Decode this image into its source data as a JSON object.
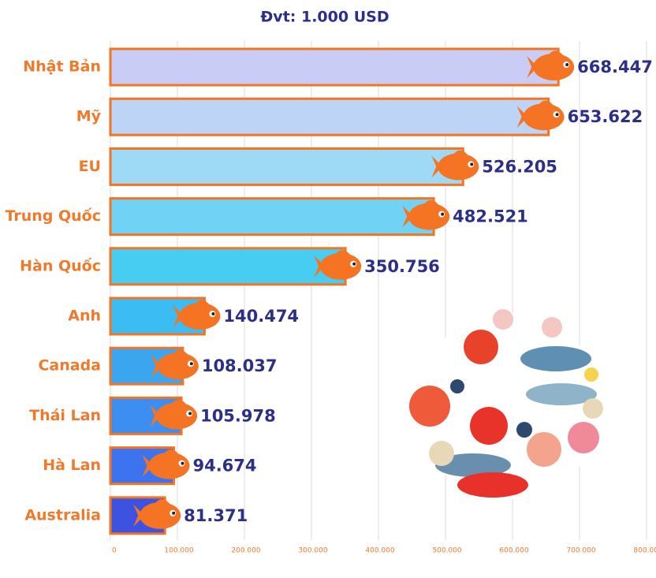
{
  "chart_data": {
    "type": "bar",
    "orientation": "horizontal",
    "title": "Đvt: 1.000 USD",
    "categories": [
      "Nhật Bản",
      "Mỹ",
      "EU",
      "Trung Quốc",
      "Hàn Quốc",
      "Anh",
      "Canada",
      "Thái Lan",
      "Hà Lan",
      "Australia"
    ],
    "values": [
      668447,
      653622,
      526205,
      482521,
      350756,
      140474,
      108037,
      105978,
      94674,
      81371
    ],
    "value_labels": [
      "668.447",
      "653.622",
      "526.205",
      "482.521",
      "350.756",
      "140.474",
      "108.037",
      "105.978",
      "94.674",
      "81.371"
    ],
    "colors": [
      "#c9cdf6",
      "#bdd4f7",
      "#9ed9f6",
      "#70d3f6",
      "#47ccf2",
      "#3bbcf2",
      "#3aa6f0",
      "#3c8ef0",
      "#3d73ee",
      "#3e52e2"
    ],
    "xlim": [
      0,
      800000
    ],
    "xticks": [
      0,
      {
        "value": 100000,
        "label": "100.000"
      },
      {
        "value": 200000,
        "label": "200.000"
      },
      {
        "value": 300000,
        "label": "300.000"
      },
      {
        "value": 400000,
        "label": "400.000"
      },
      {
        "value": 500000,
        "label": "500.000"
      },
      {
        "value": 600000,
        "label": "600.000"
      },
      {
        "value": 700000,
        "label": "700.000"
      },
      {
        "value": 800000,
        "label": "800.000"
      }
    ],
    "grid": true
  }
}
